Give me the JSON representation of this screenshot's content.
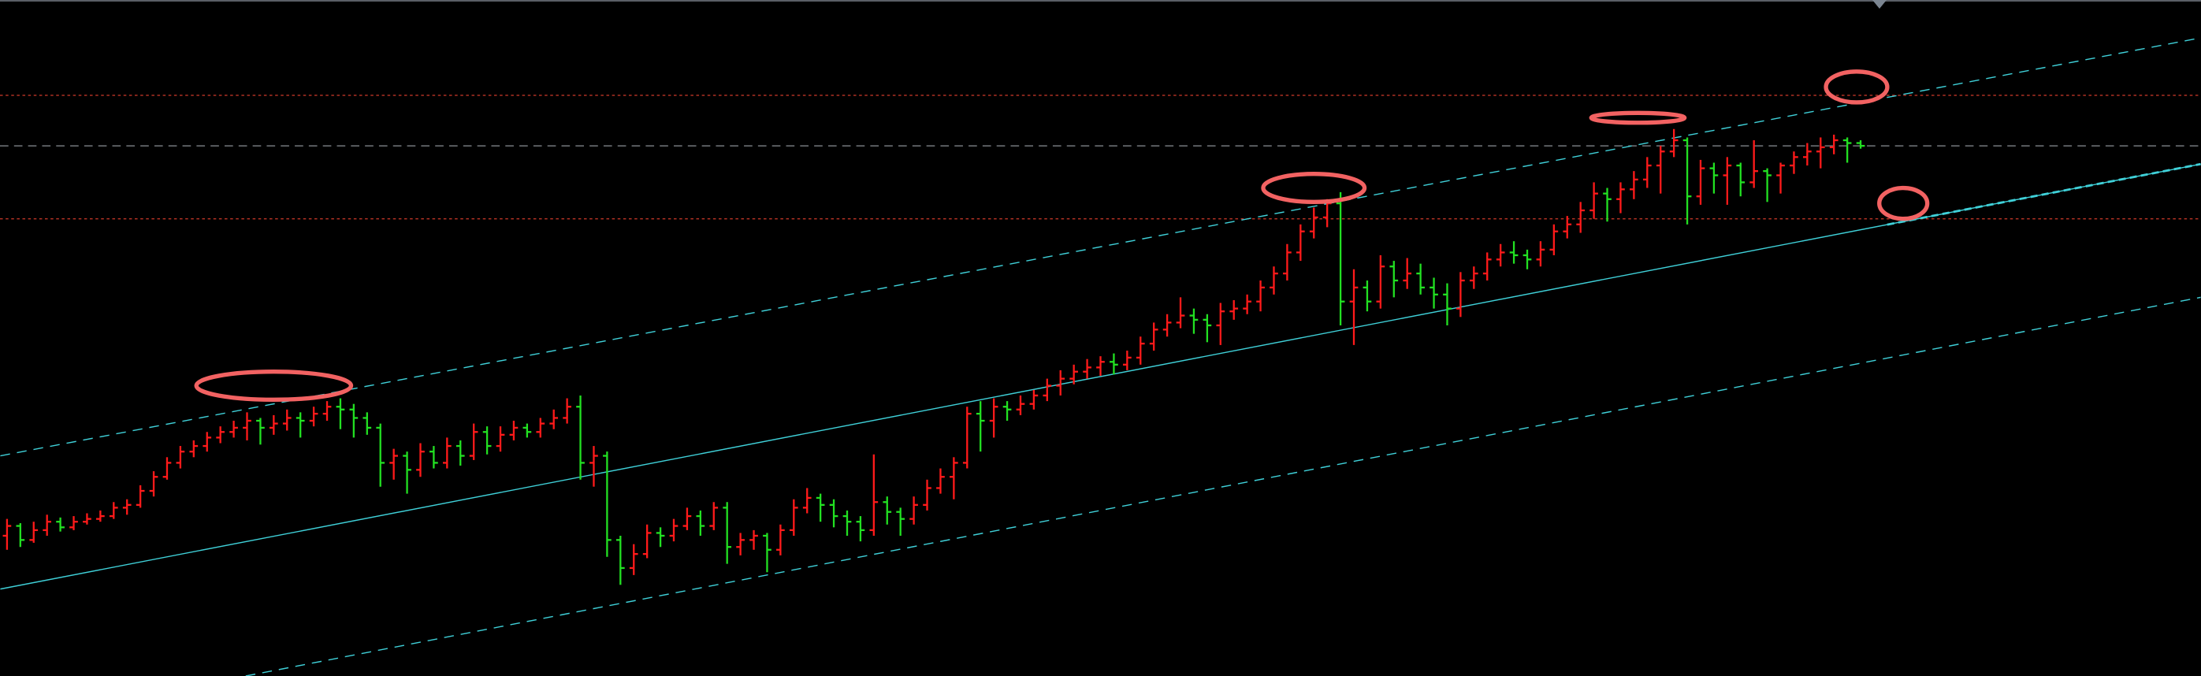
{
  "chart_data": {
    "type": "ohlc",
    "title": "",
    "xlabel": "",
    "ylabel": "",
    "grid": false,
    "colors": {
      "background": "#000000",
      "up": "#ff1a1a",
      "down": "#22e022",
      "channel": "#3fd0d8",
      "level": "#d03a2a",
      "reference": "#8a8f96",
      "annotation": "#f26262"
    },
    "bars": [
      [
        100,
        112,
        90,
        107
      ],
      [
        107,
        109,
        92,
        97
      ],
      [
        97,
        110,
        95,
        104
      ],
      [
        104,
        115,
        100,
        110
      ],
      [
        110,
        113,
        103,
        106
      ],
      [
        106,
        114,
        104,
        110
      ],
      [
        110,
        116,
        108,
        112
      ],
      [
        112,
        118,
        110,
        114
      ],
      [
        114,
        124,
        112,
        120
      ],
      [
        120,
        126,
        115,
        122
      ],
      [
        122,
        136,
        120,
        132
      ],
      [
        132,
        146,
        128,
        142
      ],
      [
        142,
        156,
        140,
        152
      ],
      [
        152,
        164,
        148,
        160
      ],
      [
        160,
        168,
        156,
        164
      ],
      [
        164,
        174,
        160,
        170
      ],
      [
        170,
        178,
        166,
        174
      ],
      [
        174,
        182,
        170,
        177
      ],
      [
        177,
        188,
        168,
        182
      ],
      [
        182,
        184,
        165,
        177
      ],
      [
        177,
        186,
        172,
        180
      ],
      [
        180,
        190,
        175,
        184
      ],
      [
        184,
        188,
        170,
        182
      ],
      [
        182,
        192,
        178,
        187
      ],
      [
        187,
        196,
        182,
        192
      ],
      [
        192,
        198,
        176,
        190
      ],
      [
        190,
        194,
        170,
        184
      ],
      [
        184,
        188,
        172,
        177
      ],
      [
        177,
        180,
        135,
        152
      ],
      [
        152,
        162,
        140,
        157
      ],
      [
        157,
        160,
        130,
        147
      ],
      [
        147,
        166,
        142,
        160
      ],
      [
        160,
        164,
        148,
        152
      ],
      [
        152,
        170,
        148,
        164
      ],
      [
        164,
        168,
        150,
        157
      ],
      [
        157,
        180,
        154,
        174
      ],
      [
        174,
        178,
        158,
        164
      ],
      [
        164,
        178,
        160,
        172
      ],
      [
        172,
        182,
        168,
        177
      ],
      [
        177,
        180,
        170,
        174
      ],
      [
        174,
        184,
        170,
        180
      ],
      [
        180,
        190,
        176,
        184
      ],
      [
        184,
        198,
        180,
        192
      ],
      [
        192,
        200,
        140,
        152
      ],
      [
        152,
        164,
        135,
        157
      ],
      [
        157,
        160,
        85,
        97
      ],
      [
        97,
        100,
        65,
        77
      ],
      [
        77,
        94,
        72,
        87
      ],
      [
        87,
        108,
        84,
        102
      ],
      [
        102,
        106,
        92,
        100
      ],
      [
        100,
        112,
        96,
        107
      ],
      [
        107,
        120,
        104,
        114
      ],
      [
        114,
        118,
        100,
        107
      ],
      [
        107,
        124,
        104,
        120
      ],
      [
        120,
        124,
        80,
        92
      ],
      [
        92,
        102,
        86,
        97
      ],
      [
        97,
        104,
        90,
        100
      ],
      [
        100,
        102,
        74,
        90
      ],
      [
        90,
        108,
        86,
        104
      ],
      [
        104,
        126,
        100,
        120
      ],
      [
        120,
        134,
        116,
        127
      ],
      [
        127,
        130,
        110,
        122
      ],
      [
        122,
        126,
        106,
        114
      ],
      [
        114,
        118,
        100,
        110
      ],
      [
        110,
        114,
        96,
        104
      ],
      [
        104,
        158,
        100,
        124
      ],
      [
        124,
        128,
        108,
        117
      ],
      [
        117,
        120,
        100,
        112
      ],
      [
        112,
        128,
        108,
        122
      ],
      [
        122,
        140,
        118,
        134
      ],
      [
        134,
        148,
        130,
        142
      ],
      [
        142,
        156,
        126,
        152
      ],
      [
        152,
        192,
        148,
        187
      ],
      [
        187,
        196,
        160,
        182
      ],
      [
        182,
        198,
        170,
        192
      ],
      [
        192,
        196,
        182,
        190
      ],
      [
        190,
        200,
        186,
        194
      ],
      [
        194,
        204,
        190,
        200
      ],
      [
        200,
        212,
        196,
        207
      ],
      [
        207,
        218,
        200,
        212
      ],
      [
        212,
        222,
        208,
        217
      ],
      [
        217,
        226,
        212,
        220
      ],
      [
        220,
        228,
        214,
        224
      ],
      [
        224,
        230,
        215,
        222
      ],
      [
        222,
        232,
        218,
        227
      ],
      [
        227,
        242,
        222,
        237
      ],
      [
        237,
        252,
        232,
        247
      ],
      [
        247,
        258,
        242,
        252
      ],
      [
        252,
        270,
        248,
        257
      ],
      [
        257,
        262,
        244,
        254
      ],
      [
        254,
        258,
        238,
        250
      ],
      [
        250,
        266,
        236,
        260
      ],
      [
        260,
        268,
        254,
        262
      ],
      [
        262,
        272,
        258,
        267
      ],
      [
        267,
        282,
        260,
        277
      ],
      [
        277,
        292,
        272,
        287
      ],
      [
        287,
        308,
        282,
        302
      ],
      [
        302,
        322,
        296,
        317
      ],
      [
        317,
        334,
        312,
        327
      ],
      [
        327,
        340,
        320,
        337
      ],
      [
        337,
        345,
        250,
        267
      ],
      [
        267,
        290,
        236,
        277
      ],
      [
        277,
        282,
        260,
        267
      ],
      [
        267,
        300,
        262,
        292
      ],
      [
        292,
        296,
        270,
        282
      ],
      [
        282,
        298,
        276,
        287
      ],
      [
        287,
        294,
        272,
        277
      ],
      [
        277,
        284,
        262,
        272
      ],
      [
        272,
        280,
        250,
        262
      ],
      [
        262,
        288,
        256,
        282
      ],
      [
        282,
        292,
        276,
        287
      ],
      [
        287,
        302,
        282,
        297
      ],
      [
        297,
        308,
        292,
        302
      ],
      [
        302,
        310,
        294,
        300
      ],
      [
        300,
        304,
        290,
        297
      ],
      [
        297,
        310,
        292,
        304
      ],
      [
        304,
        322,
        300,
        317
      ],
      [
        317,
        328,
        312,
        322
      ],
      [
        322,
        338,
        316,
        332
      ],
      [
        332,
        352,
        326,
        344
      ],
      [
        344,
        348,
        324,
        340
      ],
      [
        340,
        352,
        330,
        347
      ],
      [
        347,
        360,
        340,
        354
      ],
      [
        354,
        370,
        348,
        364
      ],
      [
        364,
        378,
        344,
        374
      ],
      [
        374,
        390,
        370,
        382
      ],
      [
        382,
        384,
        322,
        342
      ],
      [
        342,
        368,
        336,
        362
      ],
      [
        362,
        366,
        344,
        357
      ],
      [
        357,
        370,
        336,
        364
      ],
      [
        364,
        366,
        342,
        352
      ],
      [
        352,
        382,
        348,
        360
      ],
      [
        360,
        362,
        338,
        357
      ],
      [
        357,
        366,
        344,
        364
      ],
      [
        364,
        374,
        358,
        370
      ],
      [
        370,
        380,
        364,
        374
      ],
      [
        374,
        384,
        362,
        377
      ],
      [
        377,
        386,
        372,
        382
      ],
      [
        382,
        384,
        366,
        380
      ],
      [
        380,
        382,
        376,
        378
      ]
    ],
    "trendlines": [
      {
        "name": "upper-channel",
        "from": [
          -0.5,
          157
        ],
        "to": [
          164.5,
          455
        ],
        "style": "dashed"
      },
      {
        "name": "middle-channel",
        "from": [
          -0.5,
          62
        ],
        "to": [
          164.5,
          365
        ],
        "style": "solid",
        "extension_from_bar": 141
      },
      {
        "name": "lower-channel",
        "from": [
          17.9,
          0
        ],
        "to": [
          164.5,
          270
        ],
        "style": "dashed"
      }
    ],
    "levels": [
      {
        "name": "resistance-level",
        "price": 414,
        "style": "dotted",
        "color": "level"
      },
      {
        "name": "current-price-level",
        "price": 378,
        "style": "dashed",
        "color": "reference"
      },
      {
        "name": "support-level",
        "price": 326,
        "style": "dotted",
        "color": "level"
      }
    ],
    "annotations": [
      {
        "name": "highlight-ellipse-1",
        "bar": 20,
        "price": 207,
        "rx_bars": 5.8,
        "ry_price": 10
      },
      {
        "name": "highlight-ellipse-2",
        "bar": 98,
        "price": 348,
        "rx_bars": 3.8,
        "ry_price": 10
      },
      {
        "name": "highlight-ellipse-3",
        "bar": 122.3,
        "price": 398,
        "rx_bars": 3.5,
        "ry_price": 3.5
      },
      {
        "name": "highlight-circle-upper",
        "bar": 138.7,
        "price": 420,
        "rx_bars": 2.3,
        "ry_price": 11
      },
      {
        "name": "highlight-circle-lower",
        "bar": 142.2,
        "price": 337,
        "rx_bars": 1.8,
        "ry_price": 11
      }
    ]
  }
}
